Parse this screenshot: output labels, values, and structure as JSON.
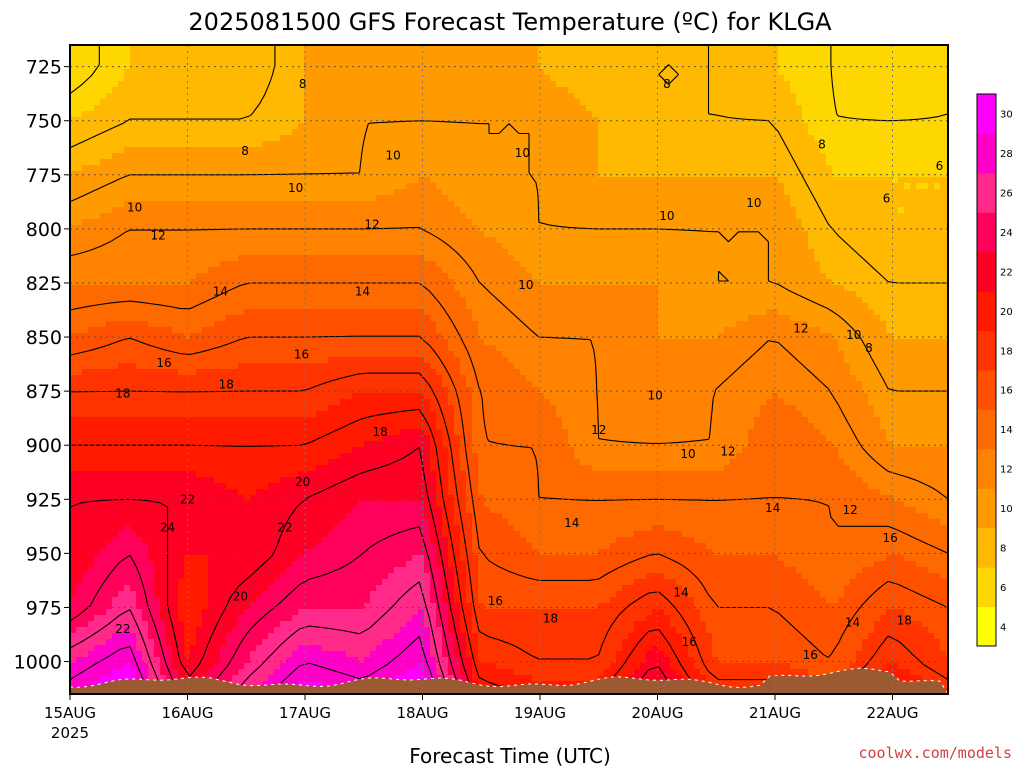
{
  "chart_data": {
    "type": "heatmap",
    "title": "2025081500 GFS Forecast Temperature (ºC) for KLGA",
    "xlabel": "Forecast Time (UTC)",
    "ylabel": "",
    "credit": "coolwx.com/models",
    "x_ticks": [
      "15AUG",
      "16AUG",
      "17AUG",
      "18AUG",
      "19AUG",
      "20AUG",
      "21AUG",
      "22AUG"
    ],
    "x_tick_year": "2025",
    "xlim": [
      0,
      7.5
    ],
    "y_ticks": [
      "725",
      "750",
      "775",
      "800",
      "825",
      "850",
      "875",
      "900",
      "925",
      "950",
      "975",
      "1000"
    ],
    "ylim_hPa": [
      715,
      1015
    ],
    "grid": true,
    "colorbar": {
      "ticks": [
        "4",
        "6",
        "8",
        "10",
        "12",
        "14",
        "16",
        "18",
        "20",
        "22",
        "24",
        "26",
        "28",
        "30"
      ],
      "colors": [
        "#ffff00",
        "#ffd700",
        "#ffb900",
        "#ff9a00",
        "#ff8200",
        "#ff6a00",
        "#ff5000",
        "#ff3300",
        "#ff1a00",
        "#ff0025",
        "#ff005a",
        "#ff2a8a",
        "#ff00c8",
        "#ff00ff"
      ],
      "placement": "right"
    },
    "times": [
      0,
      0.5,
      1,
      1.5,
      2,
      2.5,
      3,
      3.5,
      4,
      4.5,
      5,
      5.5,
      6,
      6.5,
      7,
      7.5
    ],
    "levels": [
      725,
      750,
      775,
      800,
      825,
      850,
      875,
      900,
      925,
      950,
      975,
      1000
    ],
    "temperature_C": [
      [
        5,
        7,
        7,
        7,
        9,
        9,
        9,
        9,
        9,
        8,
        8,
        8,
        7,
        6,
        5,
        6
      ],
      [
        7,
        8,
        8,
        8,
        9,
        10,
        10,
        10,
        10,
        9,
        8,
        8,
        8,
        6,
        6,
        6
      ],
      [
        9,
        10,
        10,
        10,
        10,
        10,
        11,
        10,
        10,
        9,
        9,
        9,
        9,
        7,
        7,
        7
      ],
      [
        11,
        12,
        12,
        12,
        12,
        12,
        12,
        11,
        10,
        10,
        10,
        10,
        10,
        8,
        7,
        7
      ],
      [
        13,
        13,
        13,
        14,
        14,
        14,
        14,
        12,
        11,
        11,
        11,
        10,
        10,
        9,
        8,
        8
      ],
      [
        15,
        16,
        15,
        16,
        16,
        16,
        16,
        13,
        12,
        12,
        11,
        11,
        12,
        11,
        9,
        9
      ],
      [
        18,
        18,
        18,
        18,
        18,
        19,
        19,
        14,
        13,
        12,
        11,
        12,
        13,
        12,
        10,
        10
      ],
      [
        20,
        20,
        20,
        20,
        20,
        21,
        22,
        14,
        14,
        12,
        12,
        12,
        14,
        13,
        11,
        11
      ],
      [
        22,
        22,
        22,
        21,
        22,
        23,
        23,
        15,
        14,
        14,
        14,
        14,
        14,
        14,
        13,
        12
      ],
      [
        22,
        24,
        21,
        21,
        23,
        24,
        25,
        16,
        15,
        15,
        16,
        15,
        15,
        14,
        15,
        14
      ],
      [
        23,
        26,
        20,
        23,
        25,
        25,
        27,
        17,
        17,
        17,
        19,
        16,
        16,
        15,
        17,
        16
      ],
      [
        27,
        29,
        21,
        25,
        28,
        27,
        29,
        19,
        18,
        18,
        22,
        17,
        17,
        16,
        19,
        17
      ]
    ],
    "contour_labels": [
      {
        "text": "8",
        "t": 1.98,
        "p": 733
      },
      {
        "text": "8",
        "t": 1.49,
        "p": 764
      },
      {
        "text": "10",
        "t": 2.75,
        "p": 766
      },
      {
        "text": "10",
        "t": 1.92,
        "p": 781
      },
      {
        "text": "10",
        "t": 0.55,
        "p": 790
      },
      {
        "text": "12",
        "t": 0.75,
        "p": 803
      },
      {
        "text": "12",
        "t": 2.57,
        "p": 798
      },
      {
        "text": "14",
        "t": 1.28,
        "p": 829
      },
      {
        "text": "14",
        "t": 2.49,
        "p": 829
      },
      {
        "text": "16",
        "t": 0.8,
        "p": 862
      },
      {
        "text": "16",
        "t": 1.97,
        "p": 858
      },
      {
        "text": "18",
        "t": 0.45,
        "p": 876
      },
      {
        "text": "18",
        "t": 1.33,
        "p": 872
      },
      {
        "text": "18",
        "t": 2.64,
        "p": 894
      },
      {
        "text": "20",
        "t": 1.98,
        "p": 917
      },
      {
        "text": "22",
        "t": 1.0,
        "p": 925
      },
      {
        "text": "22",
        "t": 1.83,
        "p": 938
      },
      {
        "text": "24",
        "t": 0.83,
        "p": 938
      },
      {
        "text": "20",
        "t": 1.45,
        "p": 970
      },
      {
        "text": "22",
        "t": 0.45,
        "p": 985
      },
      {
        "text": "10",
        "t": 3.88,
        "p": 826
      },
      {
        "text": "10",
        "t": 3.85,
        "p": 765
      },
      {
        "text": "8",
        "t": 5.08,
        "p": 733
      },
      {
        "text": "10",
        "t": 5.08,
        "p": 794
      },
      {
        "text": "10",
        "t": 5.82,
        "p": 788
      },
      {
        "text": "8",
        "t": 6.4,
        "p": 761
      },
      {
        "text": "6",
        "t": 6.95,
        "p": 786
      },
      {
        "text": "6",
        "t": 7.4,
        "p": 771
      },
      {
        "text": "10",
        "t": 4.98,
        "p": 877
      },
      {
        "text": "12",
        "t": 4.5,
        "p": 893
      },
      {
        "text": "10",
        "t": 5.26,
        "p": 904
      },
      {
        "text": "12",
        "t": 5.6,
        "p": 903
      },
      {
        "text": "12",
        "t": 6.22,
        "p": 846
      },
      {
        "text": "10",
        "t": 6.67,
        "p": 849
      },
      {
        "text": "8",
        "t": 6.8,
        "p": 855
      },
      {
        "text": "14",
        "t": 4.27,
        "p": 936
      },
      {
        "text": "14",
        "t": 5.98,
        "p": 929
      },
      {
        "text": "12",
        "t": 6.64,
        "p": 930
      },
      {
        "text": "16",
        "t": 6.98,
        "p": 943
      },
      {
        "text": "16",
        "t": 3.62,
        "p": 972
      },
      {
        "text": "18",
        "t": 4.09,
        "p": 980
      },
      {
        "text": "14",
        "t": 5.2,
        "p": 968
      },
      {
        "text": "16",
        "t": 5.27,
        "p": 991
      },
      {
        "text": "16",
        "t": 6.3,
        "p": 997
      },
      {
        "text": "14",
        "t": 6.66,
        "p": 982
      },
      {
        "text": "18",
        "t": 7.1,
        "p": 981
      }
    ]
  }
}
